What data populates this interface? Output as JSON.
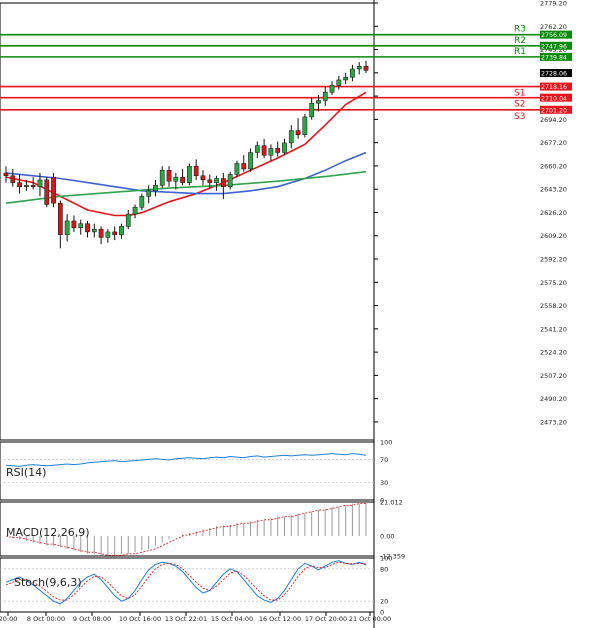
{
  "chart_data": [
    {
      "type": "candlestick",
      "name": "main-price",
      "ylim": [
        2460.0,
        2779.2
      ],
      "yticks": [
        "2779.20",
        "2762.20",
        "2745.20",
        "2728.20",
        "2711.20",
        "2694.20",
        "2677.20",
        "2660.20",
        "2643.20",
        "2626.20",
        "2609.20",
        "2592.20",
        "2575.20",
        "2558.20",
        "2541.20",
        "2524.20",
        "2507.20",
        "2490.20",
        "2473.20"
      ],
      "current_price": "2728.06",
      "levels": [
        {
          "name": "R3",
          "value": 2756.09,
          "label": "2756.09",
          "kind": "resistance"
        },
        {
          "name": "R2",
          "value": 2747.96,
          "label": "2747.96",
          "kind": "resistance"
        },
        {
          "name": "R1",
          "value": 2739.84,
          "label": "2739.84",
          "kind": "resistance"
        },
        {
          "name": "S1",
          "value": 2718.16,
          "label": "2718.16",
          "kind": "support"
        },
        {
          "name": "S2",
          "value": 2710.04,
          "label": "2710.04",
          "kind": "support"
        },
        {
          "name": "S3",
          "value": 2701.2,
          "label": "2701.20",
          "kind": "support"
        }
      ],
      "candles": [
        {
          "o": 2655,
          "h": 2660,
          "l": 2648,
          "c": 2653
        },
        {
          "o": 2653,
          "h": 2658,
          "l": 2645,
          "c": 2648
        },
        {
          "o": 2648,
          "h": 2654,
          "l": 2640,
          "c": 2645
        },
        {
          "o": 2645,
          "h": 2650,
          "l": 2642,
          "c": 2646
        },
        {
          "o": 2646,
          "h": 2652,
          "l": 2643,
          "c": 2645
        },
        {
          "o": 2645,
          "h": 2655,
          "l": 2638,
          "c": 2650
        },
        {
          "o": 2650,
          "h": 2652,
          "l": 2630,
          "c": 2632
        },
        {
          "o": 2652,
          "h": 2655,
          "l": 2630,
          "c": 2633
        },
        {
          "o": 2633,
          "h": 2635,
          "l": 2600,
          "c": 2610
        },
        {
          "o": 2610,
          "h": 2625,
          "l": 2605,
          "c": 2620
        },
        {
          "o": 2620,
          "h": 2624,
          "l": 2612,
          "c": 2615
        },
        {
          "o": 2615,
          "h": 2621,
          "l": 2610,
          "c": 2618
        },
        {
          "o": 2618,
          "h": 2620,
          "l": 2608,
          "c": 2612
        },
        {
          "o": 2612,
          "h": 2618,
          "l": 2608,
          "c": 2614
        },
        {
          "o": 2614,
          "h": 2616,
          "l": 2603,
          "c": 2608
        },
        {
          "o": 2608,
          "h": 2614,
          "l": 2604,
          "c": 2612
        },
        {
          "o": 2612,
          "h": 2616,
          "l": 2606,
          "c": 2610
        },
        {
          "o": 2610,
          "h": 2618,
          "l": 2607,
          "c": 2616
        },
        {
          "o": 2616,
          "h": 2628,
          "l": 2614,
          "c": 2625
        },
        {
          "o": 2625,
          "h": 2632,
          "l": 2622,
          "c": 2630
        },
        {
          "o": 2630,
          "h": 2640,
          "l": 2628,
          "c": 2638
        },
        {
          "o": 2638,
          "h": 2646,
          "l": 2633,
          "c": 2642
        },
        {
          "o": 2642,
          "h": 2650,
          "l": 2638,
          "c": 2646
        },
        {
          "o": 2646,
          "h": 2660,
          "l": 2644,
          "c": 2657
        },
        {
          "o": 2657,
          "h": 2660,
          "l": 2645,
          "c": 2649
        },
        {
          "o": 2649,
          "h": 2655,
          "l": 2643,
          "c": 2652
        },
        {
          "o": 2652,
          "h": 2658,
          "l": 2646,
          "c": 2648
        },
        {
          "o": 2648,
          "h": 2662,
          "l": 2646,
          "c": 2660
        },
        {
          "o": 2660,
          "h": 2665,
          "l": 2650,
          "c": 2653
        },
        {
          "o": 2653,
          "h": 2657,
          "l": 2646,
          "c": 2650
        },
        {
          "o": 2650,
          "h": 2654,
          "l": 2644,
          "c": 2648
        },
        {
          "o": 2648,
          "h": 2653,
          "l": 2642,
          "c": 2651
        },
        {
          "o": 2651,
          "h": 2655,
          "l": 2636,
          "c": 2645
        },
        {
          "o": 2645,
          "h": 2656,
          "l": 2643,
          "c": 2654
        },
        {
          "o": 2654,
          "h": 2664,
          "l": 2652,
          "c": 2662
        },
        {
          "o": 2662,
          "h": 2668,
          "l": 2656,
          "c": 2658
        },
        {
          "o": 2658,
          "h": 2673,
          "l": 2656,
          "c": 2670
        },
        {
          "o": 2670,
          "h": 2678,
          "l": 2666,
          "c": 2675
        },
        {
          "o": 2675,
          "h": 2680,
          "l": 2666,
          "c": 2668
        },
        {
          "o": 2668,
          "h": 2676,
          "l": 2664,
          "c": 2673
        },
        {
          "o": 2673,
          "h": 2678,
          "l": 2667,
          "c": 2670
        },
        {
          "o": 2670,
          "h": 2680,
          "l": 2668,
          "c": 2677
        },
        {
          "o": 2677,
          "h": 2690,
          "l": 2673,
          "c": 2686
        },
        {
          "o": 2686,
          "h": 2695,
          "l": 2680,
          "c": 2683
        },
        {
          "o": 2683,
          "h": 2698,
          "l": 2681,
          "c": 2696
        },
        {
          "o": 2696,
          "h": 2710,
          "l": 2694,
          "c": 2706
        },
        {
          "o": 2706,
          "h": 2712,
          "l": 2700,
          "c": 2708
        },
        {
          "o": 2708,
          "h": 2718,
          "l": 2704,
          "c": 2714
        },
        {
          "o": 2714,
          "h": 2722,
          "l": 2712,
          "c": 2719
        },
        {
          "o": 2719,
          "h": 2726,
          "l": 2716,
          "c": 2723
        },
        {
          "o": 2723,
          "h": 2728,
          "l": 2720,
          "c": 2725
        },
        {
          "o": 2725,
          "h": 2734,
          "l": 2722,
          "c": 2731
        },
        {
          "o": 2731,
          "h": 2736,
          "l": 2727,
          "c": 2733
        },
        {
          "o": 2733,
          "h": 2737,
          "l": 2728,
          "c": 2730
        }
      ],
      "ma_series": [
        {
          "name": "MA fast",
          "color": "#e8141b",
          "points": [
            [
              0,
              2652
            ],
            [
              4,
              2648
            ],
            [
              8,
              2638
            ],
            [
              12,
              2628
            ],
            [
              16,
              2624
            ],
            [
              18,
              2624
            ],
            [
              20,
              2626
            ],
            [
              24,
              2634
            ],
            [
              28,
              2640
            ],
            [
              32,
              2648
            ],
            [
              36,
              2657
            ],
            [
              40,
              2666
            ],
            [
              44,
              2676
            ],
            [
              47,
              2690
            ],
            [
              50,
              2705
            ],
            [
              53,
              2714
            ]
          ]
        },
        {
          "name": "MA medium",
          "color": "#3d62d6",
          "points": [
            [
              0,
              2655
            ],
            [
              4,
              2653
            ],
            [
              8,
              2651
            ],
            [
              12,
              2648
            ],
            [
              16,
              2645
            ],
            [
              20,
              2642
            ],
            [
              24,
              2641
            ],
            [
              28,
              2640
            ],
            [
              32,
              2640
            ],
            [
              36,
              2642
            ],
            [
              40,
              2645
            ],
            [
              44,
              2651
            ],
            [
              47,
              2657
            ],
            [
              50,
              2664
            ],
            [
              53,
              2670
            ]
          ]
        },
        {
          "name": "MA slow",
          "color": "#2ea44f",
          "points": [
            [
              0,
              2633
            ],
            [
              8,
              2638
            ],
            [
              16,
              2641
            ],
            [
              24,
              2644
            ],
            [
              32,
              2646
            ],
            [
              40,
              2649
            ],
            [
              48,
              2653
            ],
            [
              53,
              2656
            ]
          ]
        }
      ],
      "level_color_resistance": "#0a8a0a",
      "level_color_support": "#e8141b"
    },
    {
      "type": "line",
      "name": "rsi",
      "title": "RSI(14)",
      "ylim": [
        0,
        100
      ],
      "yticks": [
        "100",
        "70",
        "30",
        "0"
      ],
      "color": "#1e7fe0",
      "values": [
        60,
        59,
        58,
        60,
        61,
        60,
        59,
        60,
        61,
        62,
        61,
        62,
        64,
        65,
        66,
        67,
        68,
        66,
        67,
        68,
        69,
        70,
        71,
        70,
        69,
        71,
        72,
        73,
        72,
        71,
        73,
        74,
        73,
        75,
        74,
        73,
        75,
        76,
        74,
        75,
        76,
        77,
        76,
        77,
        78,
        77,
        78,
        79,
        80,
        79,
        78,
        80,
        79,
        77
      ]
    },
    {
      "type": "bar",
      "name": "macd",
      "title": "MACD(12,26,9)",
      "ylim": [
        -12.359,
        21.012
      ],
      "yticks": [
        "21.012",
        "0.00",
        "-12.359"
      ],
      "histogram": [
        0,
        -1,
        -2,
        -3,
        -4,
        -5,
        -6,
        -6,
        -7,
        -8,
        -9,
        -10,
        -11,
        -11,
        -12,
        -12,
        -12,
        -11,
        -11,
        -10,
        -9,
        -8,
        -6,
        -4,
        -2,
        0,
        1,
        2,
        3,
        4,
        5,
        6,
        6,
        7,
        8,
        8,
        9,
        10,
        10,
        11,
        12,
        12,
        13,
        14,
        14,
        15,
        16,
        17,
        18,
        18,
        19,
        20,
        20,
        21
      ],
      "signal": [
        0,
        -1,
        -1,
        -2,
        -3,
        -4,
        -5,
        -5,
        -6,
        -7,
        -8,
        -9,
        -10,
        -10,
        -11,
        -12,
        -12,
        -12,
        -11,
        -11,
        -10,
        -9,
        -8,
        -6,
        -4,
        -2,
        0,
        1,
        2,
        3,
        4,
        5,
        6,
        6,
        7,
        8,
        8,
        9,
        10,
        10,
        11,
        12,
        12,
        13,
        14,
        15,
        16,
        16,
        17,
        18,
        19,
        19,
        20,
        20
      ]
    },
    {
      "type": "line",
      "name": "stoch",
      "title": "Stoch(9,6,3)",
      "ylim": [
        0,
        100
      ],
      "yticks": [
        "100",
        "80",
        "20",
        "0"
      ],
      "k_color": "#1e7fe0",
      "d_color": "#e8141b",
      "k": [
        55,
        60,
        65,
        58,
        50,
        40,
        30,
        20,
        15,
        25,
        40,
        55,
        65,
        70,
        60,
        45,
        30,
        20,
        25,
        40,
        60,
        78,
        88,
        92,
        90,
        85,
        75,
        60,
        45,
        35,
        40,
        55,
        70,
        80,
        75,
        60,
        45,
        30,
        22,
        18,
        25,
        40,
        60,
        80,
        90,
        85,
        78,
        85,
        92,
        95,
        90,
        88,
        92,
        87
      ],
      "d": [
        50,
        55,
        60,
        60,
        55,
        48,
        38,
        28,
        22,
        22,
        32,
        45,
        58,
        66,
        65,
        55,
        42,
        30,
        25,
        32,
        48,
        65,
        80,
        88,
        90,
        88,
        80,
        68,
        55,
        44,
        40,
        48,
        60,
        72,
        76,
        68,
        55,
        42,
        30,
        22,
        22,
        32,
        48,
        66,
        80,
        86,
        82,
        82,
        88,
        92,
        90,
        89,
        90,
        89
      ]
    }
  ],
  "x_axis": {
    "labels": [
      "20:00",
      "8 Oct 00:00",
      "9 Oct 08:00",
      "10 Oct 16:00",
      "13 Oct 22:01",
      "15 Oct 04:00",
      "16 Oct 12:00",
      "17 Oct 20:00",
      "21 Oct 00:00"
    ]
  }
}
